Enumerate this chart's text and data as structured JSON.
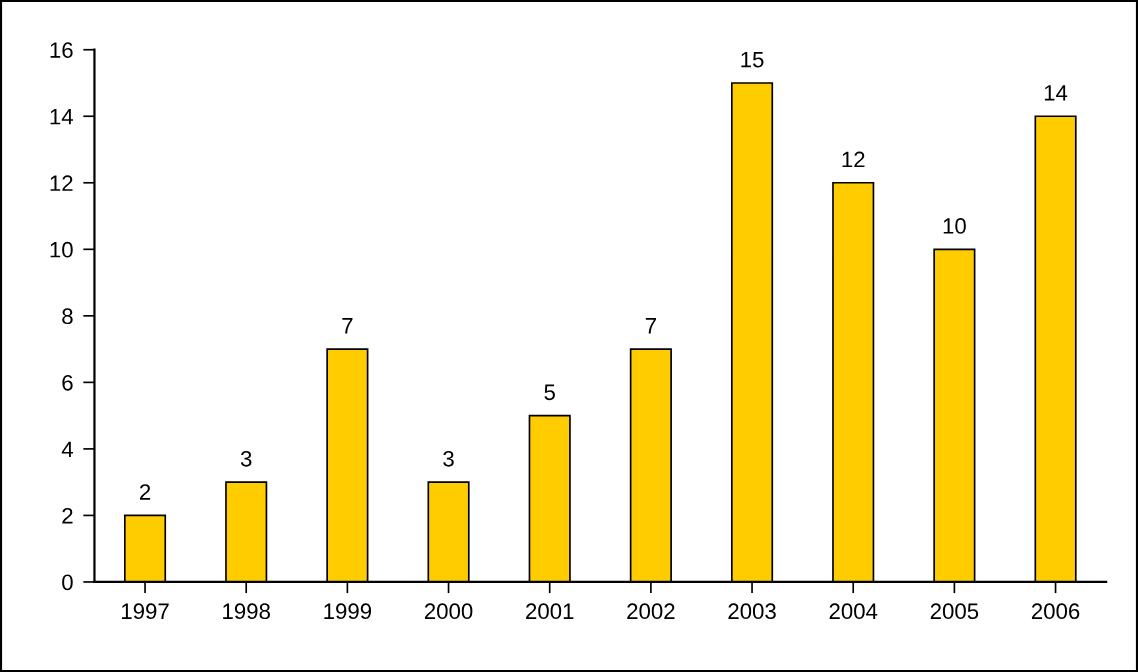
{
  "chart_data": {
    "type": "bar",
    "categories": [
      "1997",
      "1998",
      "1999",
      "2000",
      "2001",
      "2002",
      "2003",
      "2004",
      "2005",
      "2006"
    ],
    "values": [
      2,
      3,
      7,
      3,
      5,
      7,
      15,
      12,
      10,
      14
    ],
    "color": "#ffcc00",
    "ylim": [
      0,
      16
    ],
    "yticks": [
      0,
      2,
      4,
      6,
      8,
      10,
      12,
      14,
      16
    ],
    "data_labels": true,
    "grid": false,
    "legend": false
  }
}
